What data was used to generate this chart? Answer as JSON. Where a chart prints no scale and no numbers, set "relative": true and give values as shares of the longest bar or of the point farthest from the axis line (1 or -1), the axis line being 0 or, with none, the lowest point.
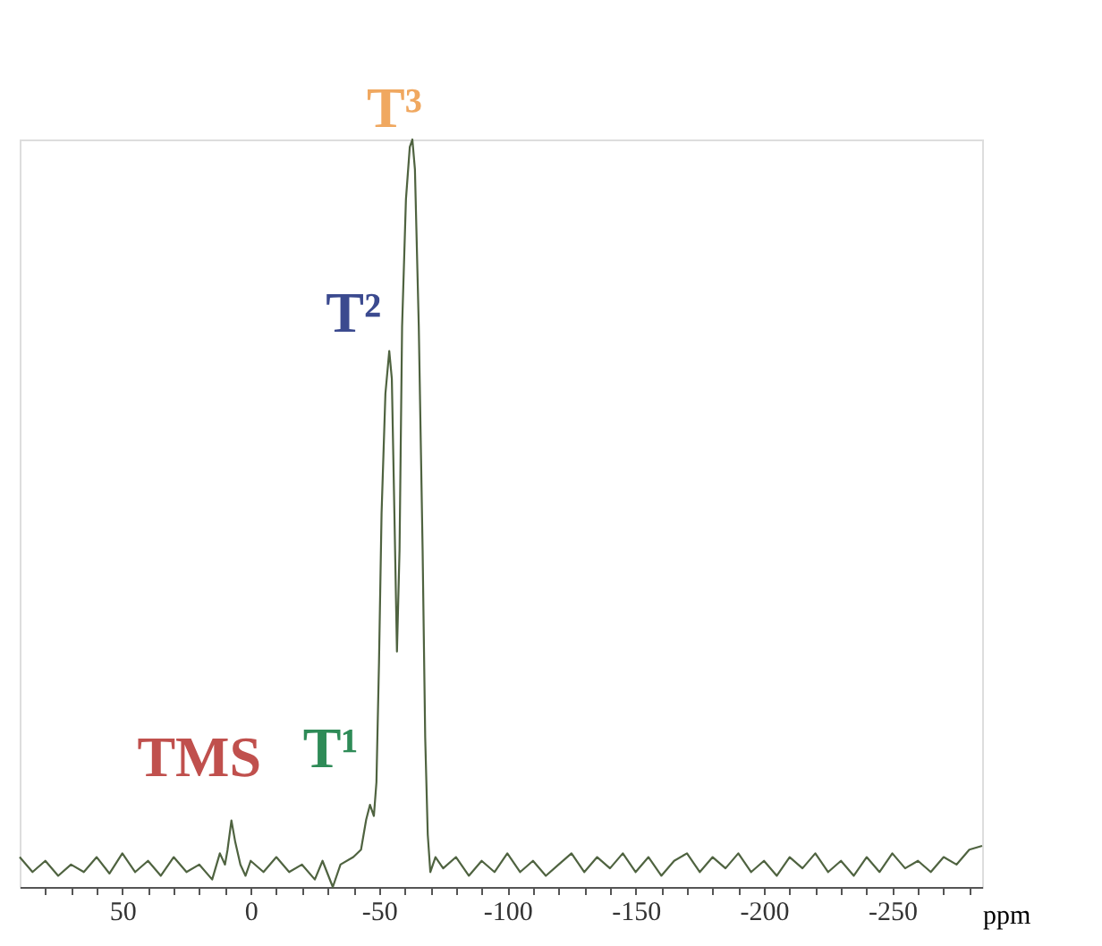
{
  "chart_data": {
    "type": "line",
    "relative": true,
    "xlabel": "ppm",
    "grid": false,
    "marker": "none",
    "line_style": "solid",
    "xlim": [
      90,
      -285
    ],
    "xticks": [
      {
        "value": 80,
        "label": null
      },
      {
        "value": 70,
        "label": null
      },
      {
        "value": 60,
        "label": null
      },
      50,
      {
        "value": 40,
        "label": null
      },
      {
        "value": 30,
        "label": null
      },
      {
        "value": 20,
        "label": null
      },
      {
        "value": 10,
        "label": null
      },
      0,
      {
        "value": -10,
        "label": null
      },
      {
        "value": -20,
        "label": null
      },
      {
        "value": -30,
        "label": null
      },
      {
        "value": -40,
        "label": null
      },
      -50,
      {
        "value": -60,
        "label": null
      },
      {
        "value": -70,
        "label": null
      },
      {
        "value": -80,
        "label": null
      },
      {
        "value": -90,
        "label": null
      },
      -100,
      {
        "value": -110,
        "label": null
      },
      {
        "value": -120,
        "label": null
      },
      {
        "value": -130,
        "label": null
      },
      {
        "value": -140,
        "label": null
      },
      -150,
      {
        "value": -160,
        "label": null
      },
      {
        "value": -170,
        "label": null
      },
      {
        "value": -180,
        "label": null
      },
      {
        "value": -190,
        "label": null
      },
      -200,
      {
        "value": -210,
        "label": null
      },
      {
        "value": -220,
        "label": null
      },
      {
        "value": -230,
        "label": null
      },
      {
        "value": -240,
        "label": null
      },
      -250,
      {
        "value": -260,
        "label": null
      },
      {
        "value": -270,
        "label": null
      },
      {
        "value": -280,
        "label": null
      }
    ],
    "series": [
      {
        "color": "#4f6340",
        "x": [
          90,
          85,
          80,
          75,
          70,
          65,
          60,
          55,
          50,
          45,
          40,
          35,
          30,
          25,
          20,
          15,
          12,
          10,
          9,
          7.5,
          6,
          4,
          2,
          0,
          -5,
          -10,
          -15,
          -20,
          -25,
          -28,
          -32,
          -35,
          -40,
          -43,
          -45,
          -46.5,
          -48,
          -49,
          -50,
          -51,
          -52.5,
          -54,
          -55,
          -56,
          -57,
          -58,
          -59,
          -60.5,
          -62,
          -63,
          -64,
          -65.5,
          -67,
          -68,
          -69,
          -70,
          -72,
          -75,
          -80,
          -85,
          -90,
          -95,
          -100,
          -105,
          -110,
          -115,
          -120,
          -125,
          -130,
          -135,
          -140,
          -145,
          -150,
          -155,
          -160,
          -165,
          -170,
          -175,
          -180,
          -185,
          -190,
          -195,
          -200,
          -205,
          -210,
          -215,
          -220,
          -225,
          -230,
          -235,
          -240,
          -245,
          -250,
          -255,
          -260,
          -265,
          -270,
          -275,
          -280,
          -285
        ],
        "values": [
          0.04,
          0.02,
          0.035,
          0.015,
          0.03,
          0.02,
          0.04,
          0.018,
          0.045,
          0.02,
          0.035,
          0.015,
          0.04,
          0.02,
          0.03,
          0.01,
          0.045,
          0.03,
          0.05,
          0.089,
          0.06,
          0.03,
          0.015,
          0.035,
          0.02,
          0.04,
          0.02,
          0.03,
          0.01,
          0.035,
          0.0,
          0.03,
          0.04,
          0.05,
          0.09,
          0.11,
          0.095,
          0.14,
          0.3,
          0.5,
          0.66,
          0.717,
          0.68,
          0.5,
          0.315,
          0.45,
          0.75,
          0.92,
          0.99,
          1.0,
          0.96,
          0.75,
          0.45,
          0.2,
          0.07,
          0.02,
          0.04,
          0.025,
          0.04,
          0.015,
          0.035,
          0.02,
          0.045,
          0.02,
          0.035,
          0.015,
          0.03,
          0.045,
          0.02,
          0.04,
          0.025,
          0.045,
          0.02,
          0.04,
          0.015,
          0.035,
          0.045,
          0.02,
          0.04,
          0.025,
          0.045,
          0.02,
          0.035,
          0.015,
          0.04,
          0.025,
          0.045,
          0.02,
          0.035,
          0.015,
          0.04,
          0.02,
          0.045,
          0.025,
          0.035,
          0.02,
          0.04,
          0.03,
          0.05,
          0.055
        ]
      }
    ],
    "annotations": [
      {
        "text": "TMS",
        "x": 7.5,
        "y": 0.089
      },
      {
        "text": "T¹",
        "x": -46.5,
        "y": 0.11
      },
      {
        "text": "T²",
        "x": -54,
        "y": 0.717
      },
      {
        "text": "T³",
        "x": -63,
        "y": 1.0
      }
    ]
  }
}
